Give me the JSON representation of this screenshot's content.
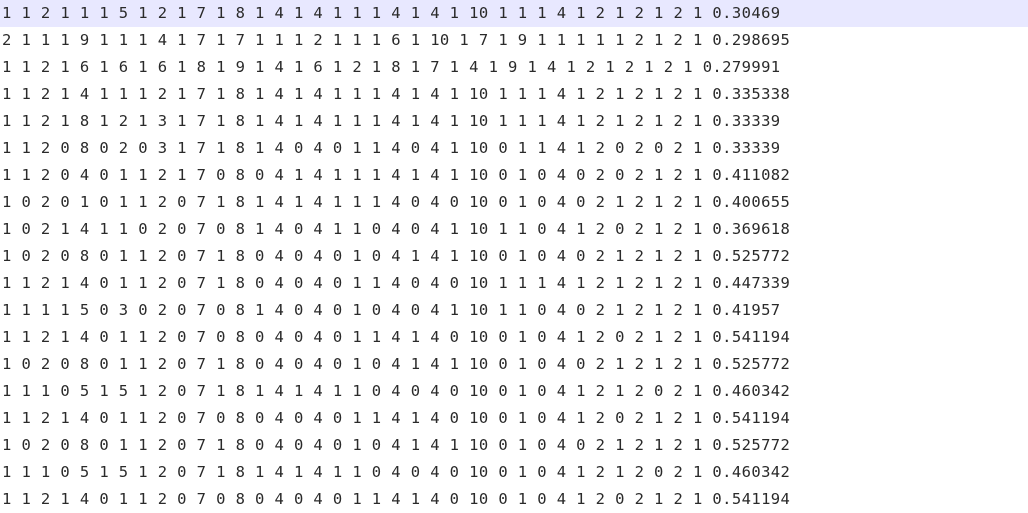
{
  "editor": {
    "current_line_index": 0,
    "highlight_color": "#e8e8ff",
    "text_color": "#2a2a2a",
    "lines": [
      "1 1 2 1 1 1 5 1 2 1 7 1 8 1 4 1 4 1 1 1 4 1 4 1 10 1 1 1 4 1 2 1 2 1 2 1 0.30469",
      "2 1 1 1 9 1 1 1 4 1 7 1 7 1 1 1 2 1 1 1 6 1 10 1 7 1 9 1 1 1 1 1 2 1 2 1 0.298695",
      "1 1 2 1 6 1 6 1 6 1 8 1 9 1 4 1 6 1 2 1 8 1 7 1 4 1 9 1 4 1 2 1 2 1 2 1 0.279991",
      "1 1 2 1 4 1 1 1 2 1 7 1 8 1 4 1 4 1 1 1 4 1 4 1 10 1 1 1 4 1 2 1 2 1 2 1 0.335338",
      "1 1 2 1 8 1 2 1 3 1 7 1 8 1 4 1 4 1 1 1 4 1 4 1 10 1 1 1 4 1 2 1 2 1 2 1 0.33339",
      "1 1 2 0 8 0 2 0 3 1 7 1 8 1 4 0 4 0 1 1 4 0 4 1 10 0 1 1 4 1 2 0 2 0 2 1 0.33339",
      "1 1 2 0 4 0 1 1 2 1 7 0 8 0 4 1 4 1 1 1 4 1 4 1 10 0 1 0 4 0 2 0 2 1 2 1 0.411082",
      "1 0 2 0 1 0 1 1 2 0 7 1 8 1 4 1 4 1 1 1 4 0 4 0 10 0 1 0 4 0 2 1 2 1 2 1 0.400655",
      "1 0 2 1 4 1 1 0 2 0 7 0 8 1 4 0 4 1 1 0 4 0 4 1 10 1 1 0 4 1 2 0 2 1 2 1 0.369618",
      "1 0 2 0 8 0 1 1 2 0 7 1 8 0 4 0 4 0 1 0 4 1 4 1 10 0 1 0 4 0 2 1 2 1 2 1 0.525772",
      "1 1 2 1 4 0 1 1 2 0 7 1 8 0 4 0 4 0 1 1 4 0 4 0 10 1 1 1 4 1 2 1 2 1 2 1 0.447339",
      "1 1 1 1 5 0 3 0 2 0 7 0 8 1 4 0 4 0 1 0 4 0 4 1 10 1 1 0 4 0 2 1 2 1 2 1 0.41957",
      "1 1 2 1 4 0 1 1 2 0 7 0 8 0 4 0 4 0 1 1 4 1 4 0 10 0 1 0 4 1 2 0 2 1 2 1 0.541194",
      "1 0 2 0 8 0 1 1 2 0 7 1 8 0 4 0 4 0 1 0 4 1 4 1 10 0 1 0 4 0 2 1 2 1 2 1 0.525772",
      "1 1 1 0 5 1 5 1 2 0 7 1 8 1 4 1 4 1 1 0 4 0 4 0 10 0 1 0 4 1 2 1 2 0 2 1 0.460342",
      "1 1 2 1 4 0 1 1 2 0 7 0 8 0 4 0 4 0 1 1 4 1 4 0 10 0 1 0 4 1 2 0 2 1 2 1 0.541194",
      "1 0 2 0 8 0 1 1 2 0 7 1 8 0 4 0 4 0 1 0 4 1 4 1 10 0 1 0 4 0 2 1 2 1 2 1 0.525772",
      "1 1 1 0 5 1 5 1 2 0 7 1 8 1 4 1 4 1 1 0 4 0 4 0 10 0 1 0 4 1 2 1 2 0 2 1 0.460342",
      "1 1 2 1 4 0 1 1 2 0 7 0 8 0 4 0 4 0 1 1 4 1 4 0 10 0 1 0 4 1 2 0 2 1 2 1 0.541194"
    ]
  }
}
